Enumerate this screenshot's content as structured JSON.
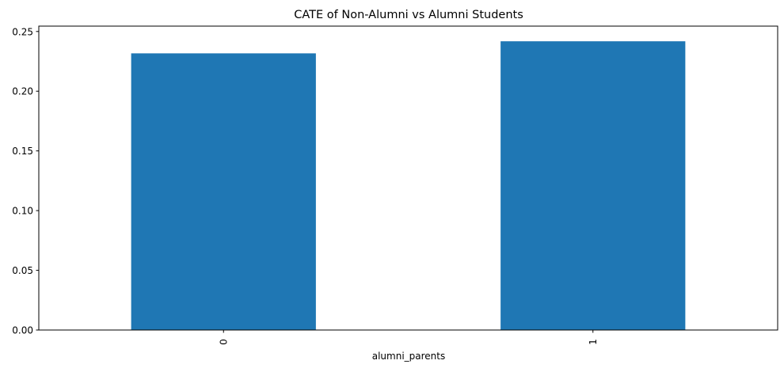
{
  "chart_data": {
    "type": "bar",
    "title": "CATE of Non-Alumni vs Alumni Students",
    "xlabel": "alumni_parents",
    "ylabel": "",
    "categories": [
      "0",
      "1"
    ],
    "values": [
      0.2317,
      0.2418
    ],
    "ylim": [
      0,
      0.2545
    ],
    "yticks": [
      0.0,
      0.05,
      0.1,
      0.15,
      0.2,
      0.25
    ],
    "ytick_labels": [
      "0.00",
      "0.05",
      "0.10",
      "0.15",
      "0.20",
      "0.25"
    ],
    "bar_color": "#1f77b4",
    "grid": false,
    "legend": "none"
  }
}
